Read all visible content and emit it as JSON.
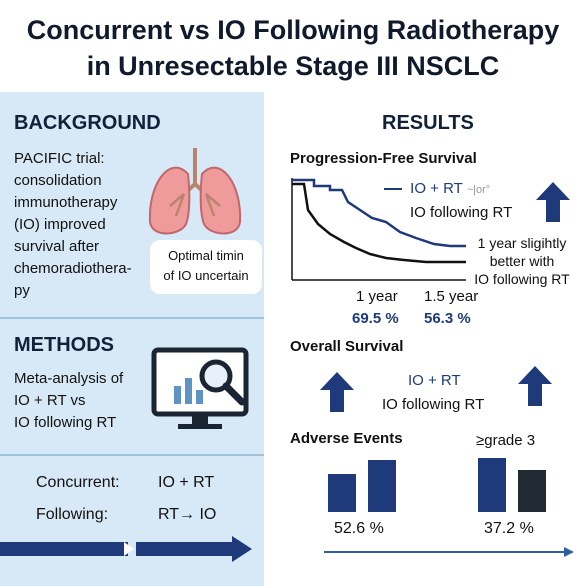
{
  "title": {
    "line1": "Concurrent vs IO Following Radiotherapy",
    "line2": "in Unresectable Stage III NSCLC"
  },
  "background": {
    "heading": "BACKGROUND",
    "lines": [
      "PACIFIC trial:",
      "consolidation",
      "immunotherapy",
      "(IO) improved",
      "survival after",
      "chemoradiothera-",
      "py"
    ],
    "callout_line1": "Optimal timin",
    "callout_line2": "of IO uncertain",
    "icon": "lungs-icon"
  },
  "methods": {
    "heading": "METHODS",
    "lines": [
      "Meta-analysis of",
      "IO + RT vs",
      "IO following RT"
    ],
    "icon": "monitor-chart-search-icon",
    "concurrent_label": "Concurrent:",
    "concurrent_value": "IO + RT",
    "following_label": "Following:",
    "following_value": "RT→ IO"
  },
  "results": {
    "heading": "RESULTS",
    "pfs": {
      "heading": "Progression-Free Survival",
      "legend_io_rt": "IO + RT",
      "legend_suffix": "~|or°",
      "legend_io_following": "IO following RT",
      "note_line1": "1 year sligihtly",
      "note_line2": "better with",
      "note_line3": "IO following RT",
      "x_label_1": "1 year",
      "x_label_2": "1.5 year",
      "value_1": "69.5 %",
      "value_2": "56.3 %"
    },
    "os": {
      "heading": "Overall Survival",
      "label_io_rt": "IO + RT",
      "label_io_following": "IO following RT"
    },
    "ae": {
      "heading": "Adverse Events",
      "grade_label": "≥grade 3",
      "value_1": "52.6 %",
      "value_2": "37.2 %"
    }
  },
  "colors": {
    "navy": "#1e3a7a",
    "panel_bg": "#d7e9f6",
    "black_line": "#111111"
  }
}
